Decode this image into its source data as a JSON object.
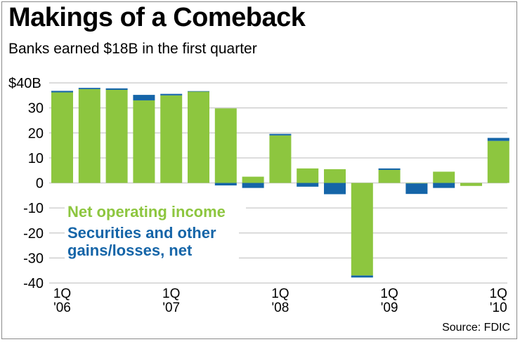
{
  "title": "Makings of a Comeback",
  "subtitle": "Banks earned $18B in the first quarter",
  "source": "Source: FDIC",
  "colors": {
    "net_operating": "#8dc63f",
    "securities": "#1565a8",
    "grid": "#c8c8c8"
  },
  "chart_data": {
    "type": "bar",
    "stacked": true,
    "title": "Makings of a Comeback",
    "subtitle": "Banks earned $18B in the first quarter",
    "xlabel": "",
    "ylabel": "",
    "ylim": [
      -40,
      40
    ],
    "yticks": [
      {
        "value": 40,
        "label": "$40B"
      },
      {
        "value": 30,
        "label": "30"
      },
      {
        "value": 20,
        "label": "20"
      },
      {
        "value": 10,
        "label": "10"
      },
      {
        "value": 0,
        "label": "0"
      },
      {
        "value": -10,
        "label": "-10"
      },
      {
        "value": -20,
        "label": "-20"
      },
      {
        "value": -30,
        "label": "-30"
      },
      {
        "value": -40,
        "label": "-40"
      }
    ],
    "grid": true,
    "categories": [
      "1Q 2006",
      "2Q 2006",
      "3Q 2006",
      "4Q 2006",
      "1Q 2007",
      "2Q 2007",
      "3Q 2007",
      "4Q 2007",
      "1Q 2008",
      "2Q 2008",
      "3Q 2008",
      "4Q 2008",
      "1Q 2009",
      "2Q 2009",
      "3Q 2009",
      "4Q 2009",
      "1Q 2010"
    ],
    "xtick_labels": [
      {
        "index": 0,
        "line1": "1Q",
        "line2": "'06"
      },
      {
        "index": 4,
        "line1": "1Q",
        "line2": "'07"
      },
      {
        "index": 8,
        "line1": "1Q",
        "line2": "'08"
      },
      {
        "index": 12,
        "line1": "1Q",
        "line2": "'09"
      },
      {
        "index": 16,
        "line1": "1Q",
        "line2": "'10"
      }
    ],
    "series": [
      {
        "name": "Net operating income",
        "color": "#8dc63f",
        "values": [
          36.2,
          37.5,
          37.2,
          33.0,
          35.0,
          36.5,
          29.8,
          2.5,
          19.0,
          5.8,
          5.5,
          -37.0,
          5.2,
          -0.2,
          4.5,
          -1.2,
          16.8
        ]
      },
      {
        "name": "Securities and other gains/losses, net",
        "color": "#1565a8",
        "values": [
          0.6,
          0.5,
          0.6,
          2.2,
          0.6,
          0.2,
          -1.0,
          -2.0,
          0.6,
          -1.5,
          -4.5,
          -0.8,
          0.6,
          -4.2,
          -2.0,
          0.0,
          1.2
        ]
      }
    ],
    "legend": {
      "position": "left-middle",
      "items": [
        {
          "line1": "Net operating income",
          "line2": "",
          "color": "#8dc63f"
        },
        {
          "line1": "Securities and other",
          "line2": "gains/losses, net",
          "color": "#1565a8"
        }
      ]
    }
  }
}
